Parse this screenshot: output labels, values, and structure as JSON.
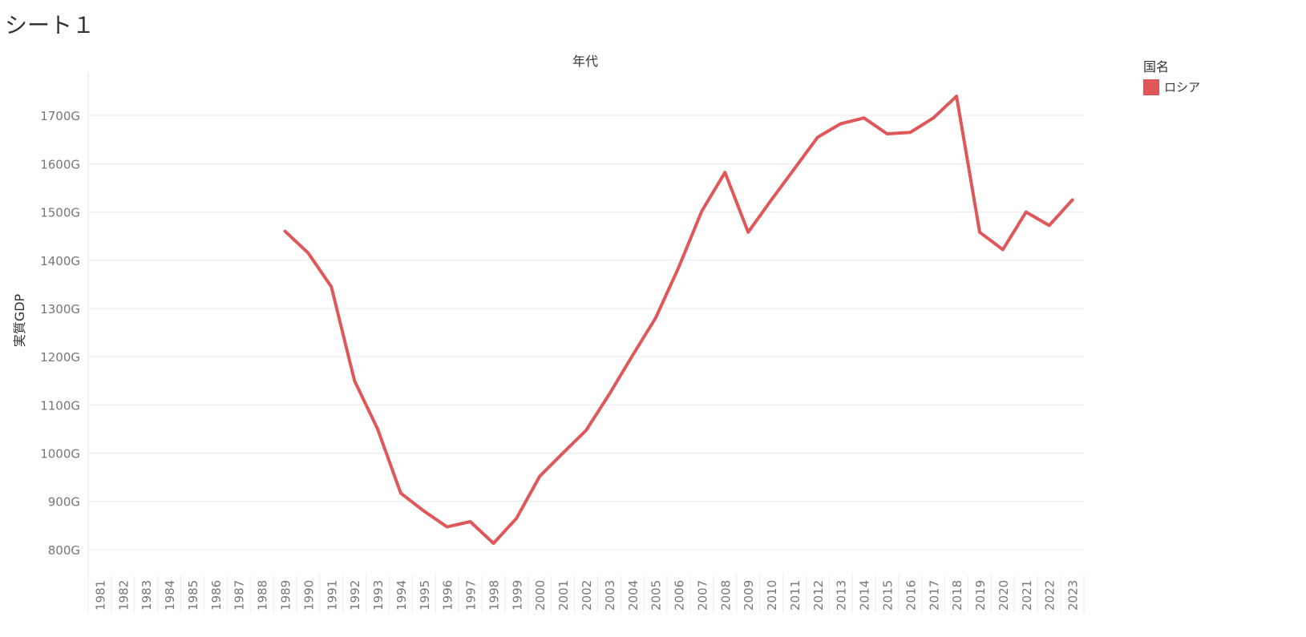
{
  "sheet": {
    "title": "シート１"
  },
  "legend": {
    "title": "国名",
    "items": [
      {
        "label": "ロシア",
        "color": "#e05759"
      }
    ]
  },
  "chart_data": {
    "type": "line",
    "title": "年代",
    "xlabel": "年代",
    "ylabel": "実質GDP",
    "ylim": [
      760,
      1790
    ],
    "yticks": [
      800,
      900,
      1000,
      1100,
      1200,
      1300,
      1400,
      1500,
      1600,
      1700
    ],
    "ytick_labels": [
      "800G",
      "900G",
      "1000G",
      "1100G",
      "1200G",
      "1300G",
      "1400G",
      "1500G",
      "1600G",
      "1700G"
    ],
    "categories": [
      "1981",
      "1982",
      "1983",
      "1984",
      "1985",
      "1986",
      "1987",
      "1988",
      "1989",
      "1990",
      "1991",
      "1992",
      "1993",
      "1994",
      "1995",
      "1996",
      "1997",
      "1998",
      "1999",
      "2000",
      "2001",
      "2002",
      "2003",
      "2004",
      "2005",
      "2006",
      "2007",
      "2008",
      "2009",
      "2010",
      "2011",
      "2012",
      "2013",
      "2014",
      "2015",
      "2016",
      "2017",
      "2018",
      "2019",
      "2020",
      "2021",
      "2022",
      "2023"
    ],
    "series": [
      {
        "name": "ロシア",
        "color": "#e05759",
        "values": [
          null,
          null,
          null,
          null,
          null,
          null,
          null,
          null,
          1460,
          1415,
          1345,
          1150,
          1050,
          917,
          880,
          847,
          858,
          813,
          865,
          952,
          1000,
          1047,
          1122,
          1202,
          1280,
          1385,
          1502,
          1582,
          1458,
          1525,
          1590,
          1655,
          1683,
          1695,
          1662,
          1665,
          1695,
          1740,
          1458,
          1422,
          1500,
          1472,
          1525
        ]
      }
    ]
  }
}
